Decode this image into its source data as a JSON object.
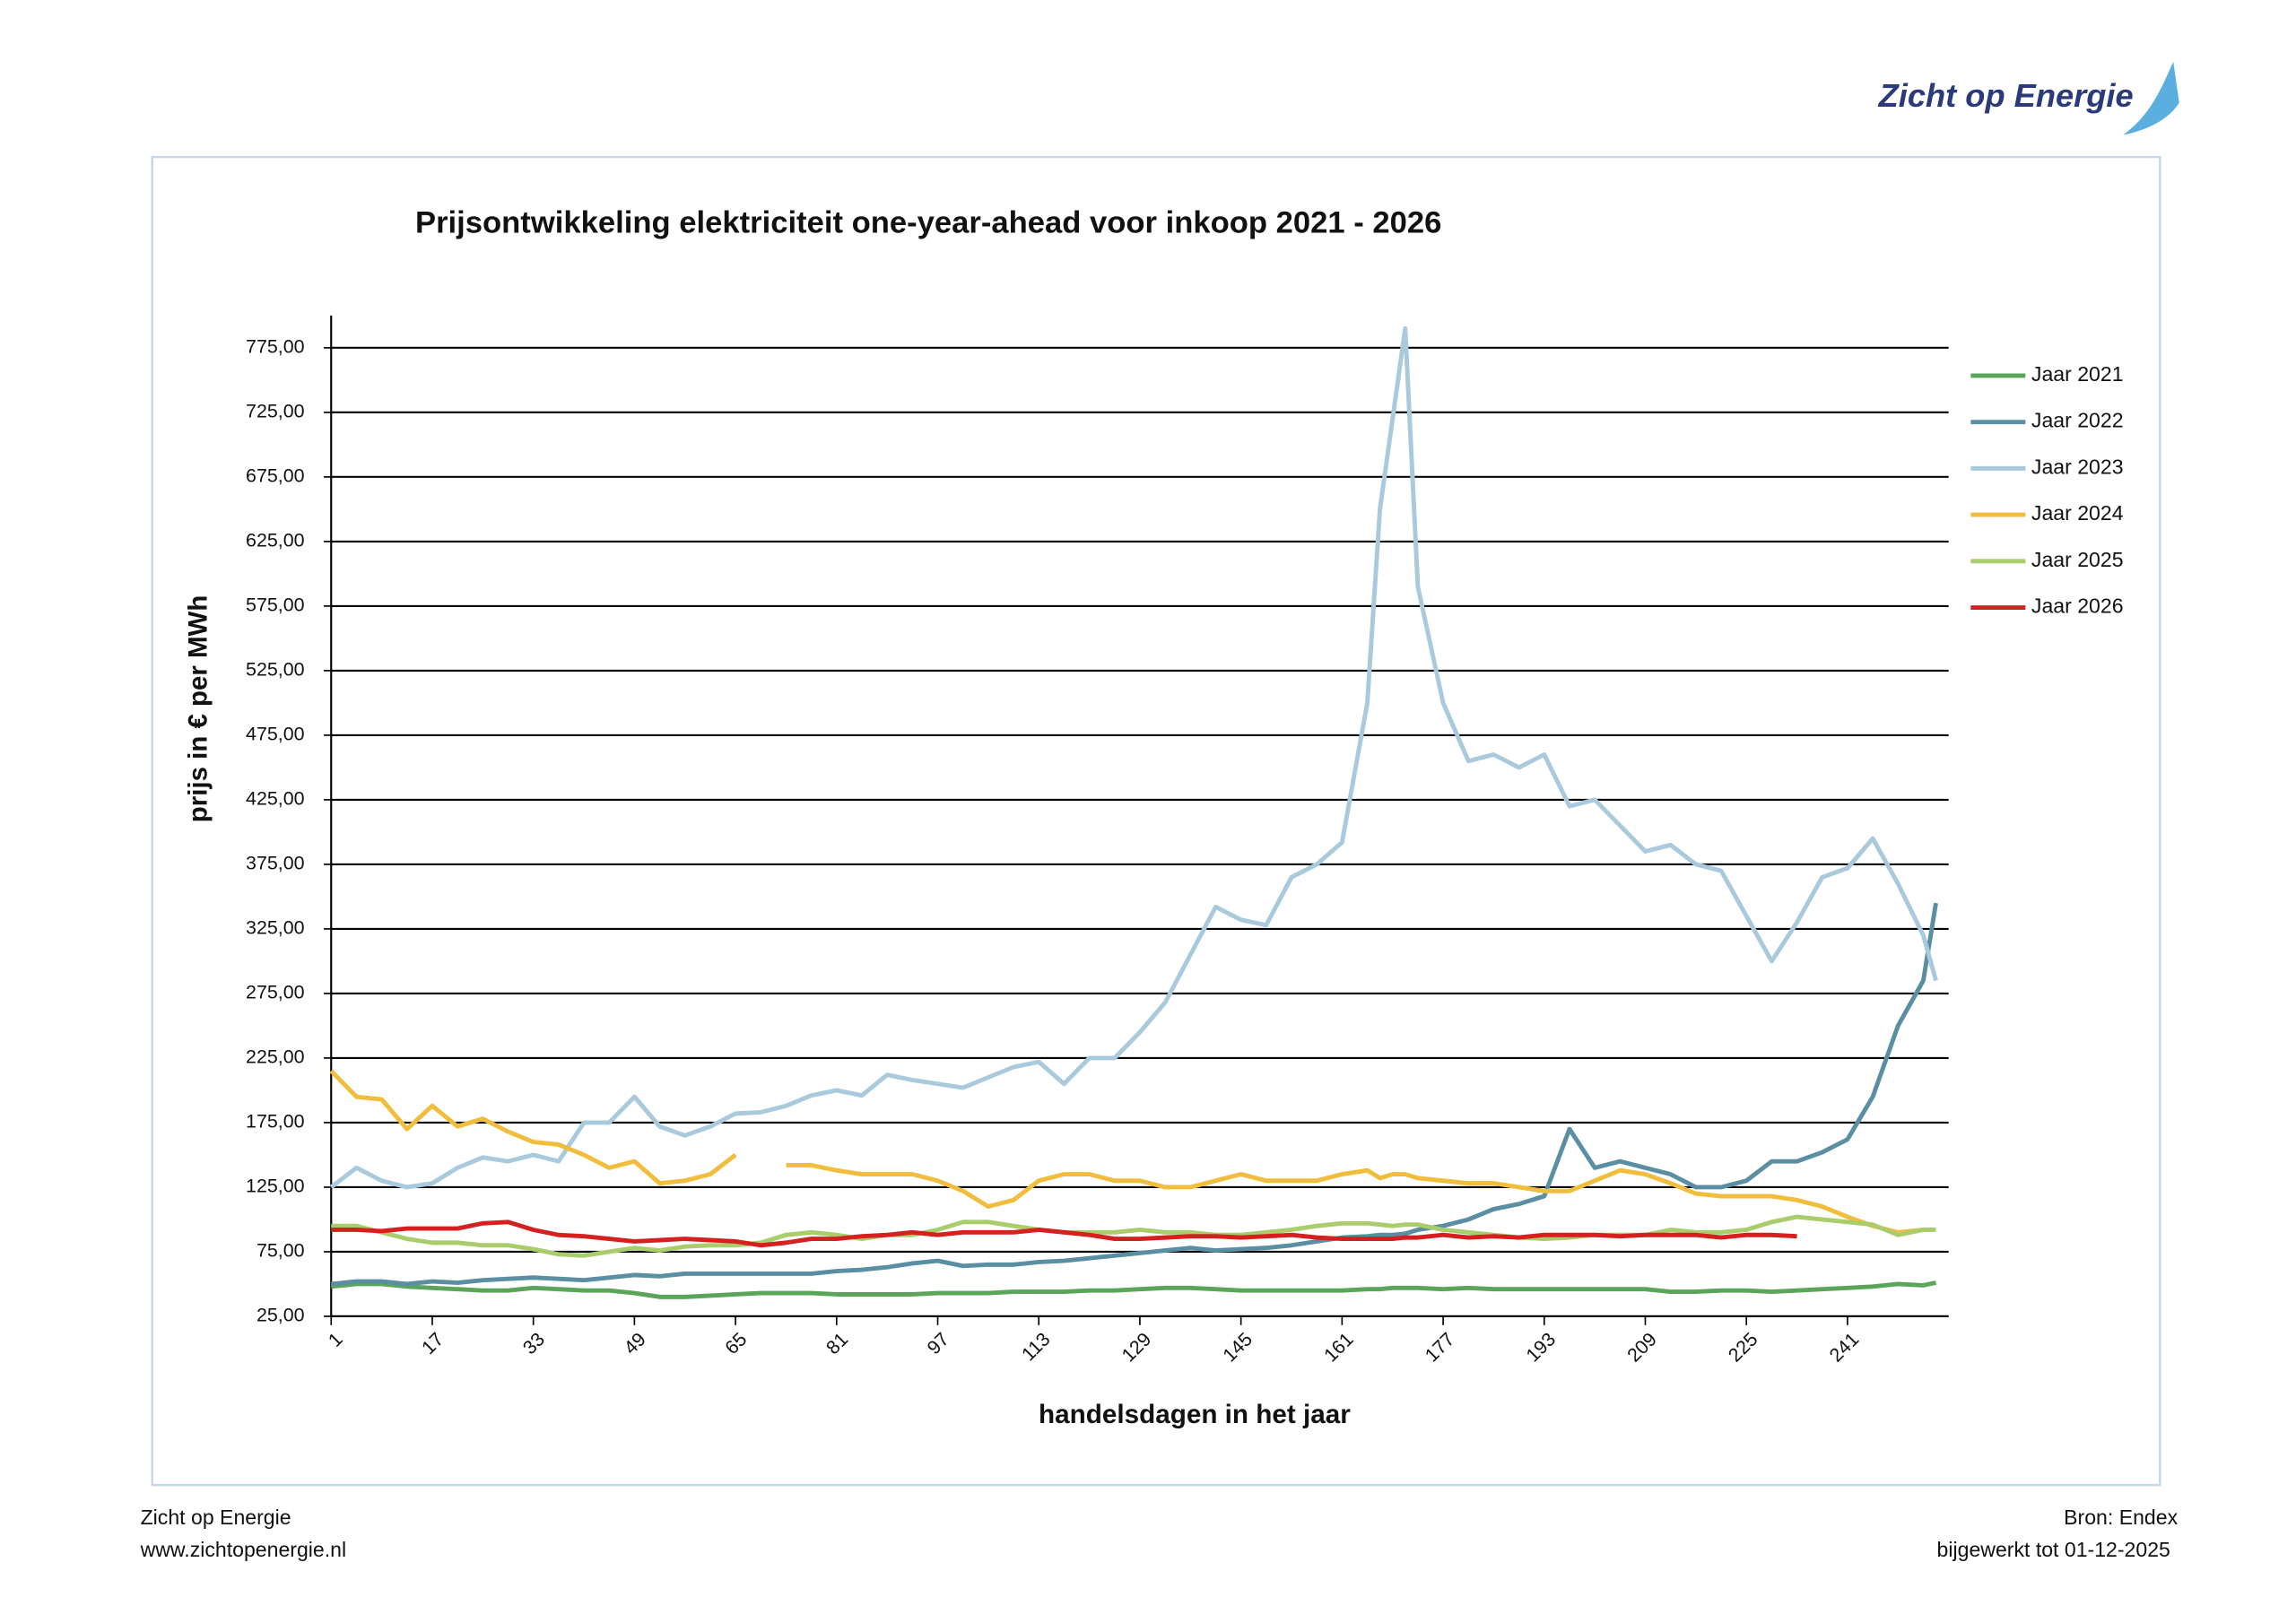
{
  "header": {
    "logo": "Zicht op Energie"
  },
  "footer": {
    "left": [
      "Zicht op Energie",
      "www.zichtopenergie.nl"
    ],
    "right": [
      "Bron: Endex",
      "bijgewerkt tot 01-12-2025"
    ]
  },
  "chart_data": {
    "type": "line",
    "title": "Prijsontwikkeling elektriciteit one-year-ahead voor inkoop 2021 - 2026",
    "x_label": "handelsdagen in het jaar",
    "y_label": "prijs in € per MWh",
    "x": [
      1,
      5,
      9,
      13,
      17,
      21,
      25,
      29,
      33,
      37,
      41,
      45,
      49,
      53,
      57,
      61,
      65,
      69,
      73,
      77,
      81,
      85,
      89,
      93,
      97,
      101,
      105,
      109,
      113,
      117,
      121,
      125,
      129,
      133,
      137,
      141,
      145,
      149,
      153,
      157,
      161,
      165,
      167,
      169,
      171,
      173,
      177,
      181,
      185,
      189,
      193,
      197,
      201,
      205,
      209,
      213,
      217,
      221,
      225,
      229,
      233,
      237,
      241,
      245,
      249,
      253,
      255
    ],
    "xlim": [
      1,
      257
    ],
    "xticks": [
      1,
      17,
      33,
      49,
      65,
      81,
      97,
      113,
      129,
      145,
      161,
      177,
      193,
      209,
      225,
      241
    ],
    "ylim": [
      25,
      800
    ],
    "yticks": [
      {
        "value": 25,
        "label": "25,00"
      },
      {
        "value": 75,
        "label": "75,00"
      },
      {
        "value": 125,
        "label": "125,00"
      },
      {
        "value": 175,
        "label": "175,00"
      },
      {
        "value": 225,
        "label": "225,00"
      },
      {
        "value": 275,
        "label": "275,00"
      },
      {
        "value": 325,
        "label": "325,00"
      },
      {
        "value": 375,
        "label": "375,00"
      },
      {
        "value": 425,
        "label": "425,00"
      },
      {
        "value": 475,
        "label": "475,00"
      },
      {
        "value": 525,
        "label": "525,00"
      },
      {
        "value": 575,
        "label": "575,00"
      },
      {
        "value": 625,
        "label": "625,00"
      },
      {
        "value": 675,
        "label": "675,00"
      },
      {
        "value": 725,
        "label": "725,00"
      },
      {
        "value": 775,
        "label": "775,00"
      }
    ],
    "grid": true,
    "legend": "right",
    "series": [
      {
        "name": "Jaar 2021",
        "color": "#5aa55a",
        "values": [
          48,
          50,
          50,
          48,
          47,
          46,
          45,
          45,
          47,
          46,
          45,
          45,
          43,
          40,
          40,
          41,
          42,
          43,
          43,
          43,
          42,
          42,
          42,
          42,
          43,
          43,
          43,
          44,
          44,
          44,
          45,
          45,
          46,
          47,
          47,
          46,
          45,
          45,
          45,
          45,
          45,
          46,
          46,
          47,
          47,
          47,
          46,
          47,
          46,
          46,
          46,
          46,
          46,
          46,
          46,
          44,
          44,
          45,
          45,
          44,
          45,
          46,
          47,
          48,
          50,
          49,
          51
        ]
      },
      {
        "name": "Jaar 2022",
        "color": "#5a8fa3",
        "values": [
          50,
          52,
          52,
          50,
          52,
          51,
          53,
          54,
          55,
          54,
          53,
          55,
          57,
          56,
          58,
          58,
          58,
          58,
          58,
          58,
          60,
          61,
          63,
          66,
          68,
          64,
          65,
          65,
          67,
          68,
          70,
          72,
          74,
          76,
          78,
          76,
          77,
          78,
          80,
          83,
          86,
          87,
          88,
          88,
          89,
          92,
          95,
          100,
          108,
          112,
          118,
          170,
          140,
          145,
          140,
          135,
          125,
          125,
          130,
          145,
          145,
          152,
          162,
          195,
          250,
          285,
          345
        ]
      },
      {
        "name": "Jaar 2023",
        "color": "#a9c9dc",
        "values": [
          125,
          140,
          130,
          125,
          128,
          140,
          148,
          145,
          150,
          145,
          175,
          175,
          195,
          172,
          165,
          172,
          182,
          183,
          188,
          196,
          200,
          196,
          212,
          208,
          205,
          202,
          210,
          218,
          222,
          205,
          225,
          225,
          245,
          268,
          305,
          342,
          332,
          328,
          365,
          375,
          392,
          500,
          650,
          720,
          790,
          590,
          500,
          455,
          460,
          450,
          460,
          420,
          425,
          405,
          385,
          390,
          375,
          370,
          335,
          300,
          330,
          365,
          372,
          395,
          360,
          320,
          285
        ]
      },
      {
        "name": "Jaar 2024",
        "color": "#f0bd3c",
        "values": [
          215,
          195,
          193,
          170,
          188,
          172,
          178,
          168,
          160,
          158,
          150,
          140,
          145,
          128,
          130,
          135,
          150,
          null,
          142,
          142,
          138,
          135,
          135,
          135,
          130,
          122,
          110,
          115,
          130,
          135,
          135,
          130,
          130,
          125,
          125,
          130,
          135,
          130,
          130,
          130,
          135,
          138,
          132,
          135,
          135,
          132,
          130,
          128,
          128,
          125,
          122,
          122,
          130,
          138,
          135,
          128,
          120,
          118,
          118,
          118,
          115,
          110,
          102,
          95,
          90,
          92,
          null
        ]
      },
      {
        "name": "Jaar 2025",
        "color": "#a8cd6a",
        "values": [
          95,
          95,
          90,
          85,
          82,
          82,
          80,
          80,
          77,
          73,
          72,
          75,
          78,
          76,
          79,
          80,
          80,
          82,
          88,
          90,
          88,
          85,
          88,
          88,
          92,
          98,
          98,
          95,
          92,
          90,
          90,
          90,
          92,
          90,
          90,
          88,
          88,
          90,
          92,
          95,
          97,
          97,
          96,
          95,
          96,
          96,
          92,
          90,
          88,
          86,
          85,
          86,
          88,
          88,
          88,
          92,
          90,
          90,
          92,
          98,
          102,
          100,
          98,
          96,
          88,
          92,
          92
        ]
      },
      {
        "name": "Jaar 2026",
        "color": "#d61f1f",
        "values": [
          92,
          92,
          91,
          93,
          93,
          93,
          97,
          98,
          92,
          88,
          87,
          85,
          83,
          84,
          85,
          84,
          83,
          80,
          82,
          85,
          85,
          87,
          88,
          90,
          88,
          90,
          90,
          90,
          92,
          90,
          88,
          85,
          85,
          86,
          87,
          87,
          86,
          87,
          88,
          86,
          85,
          85,
          85,
          85,
          86,
          86,
          88,
          86,
          87,
          86,
          88,
          88,
          88,
          87,
          88,
          88,
          88,
          86,
          88,
          88,
          87,
          null,
          null,
          null,
          null,
          null,
          null
        ]
      }
    ]
  }
}
